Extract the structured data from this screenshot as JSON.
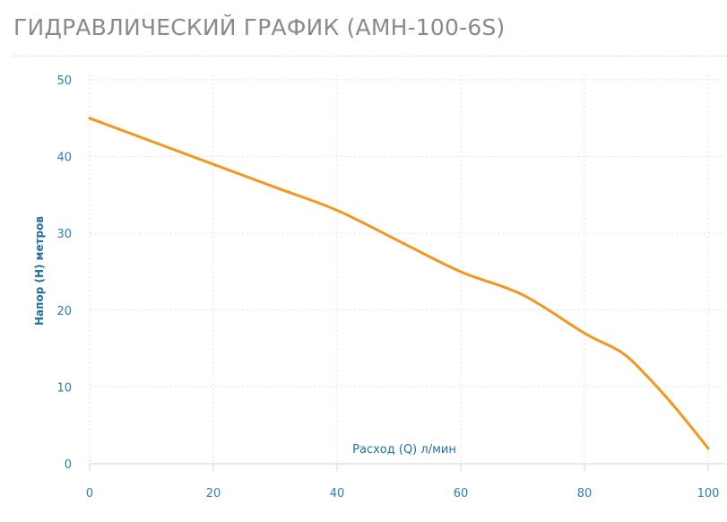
{
  "header": {
    "title_main": "ГИДРАВЛИЧЕСКИЙ ГРАФИК",
    "title_model": "(AMH-100-6S)"
  },
  "colors": {
    "line": "#f5961e",
    "axis_text": "#2b7fb8",
    "grid": "#e2e2e2"
  },
  "chart_data": {
    "type": "line",
    "title": "ГИДРАВЛИЧЕСКИЙ ГРАФИК (AMH-100-6S)",
    "xlabel": "Расход (Q) л/мин",
    "ylabel": "Напор (H) метров",
    "xlim": [
      0,
      100
    ],
    "ylim": [
      0,
      50
    ],
    "xticks": [
      0,
      20,
      40,
      60,
      80,
      100
    ],
    "yticks": [
      0,
      10,
      20,
      30,
      40,
      50
    ],
    "grid": true,
    "series": [
      {
        "x": [
          0,
          10,
          20,
          30,
          40,
          50,
          60,
          70,
          80,
          86,
          90,
          95,
          100
        ],
        "y": [
          45,
          42,
          39,
          36,
          33,
          29,
          25,
          22,
          17,
          14.5,
          11.5,
          7,
          2
        ]
      }
    ]
  }
}
